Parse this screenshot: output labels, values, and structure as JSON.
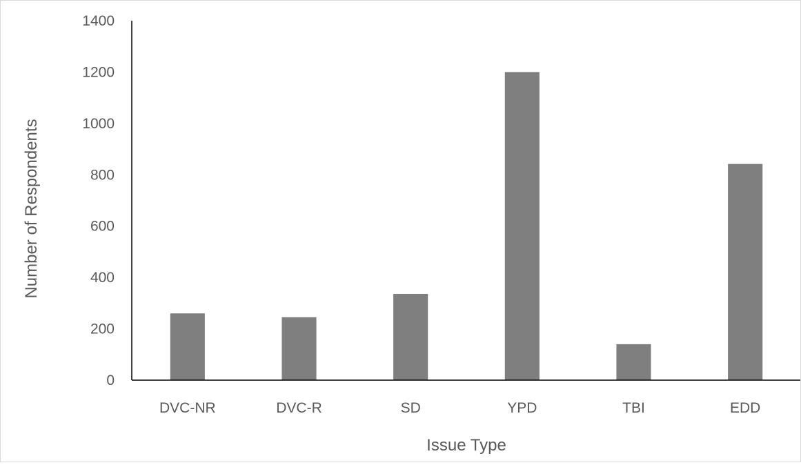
{
  "chart_data": {
    "type": "bar",
    "title": "",
    "xlabel": "Issue Type",
    "ylabel": "Number of Respondents",
    "categories": [
      "DVC-NR",
      "DVC-R",
      "SD",
      "YPD",
      "TBI",
      "EDD"
    ],
    "values": [
      260,
      245,
      336,
      1200,
      140,
      842
    ],
    "ylim": [
      0,
      1400
    ],
    "yticks": [
      0,
      200,
      400,
      600,
      800,
      1000,
      1200,
      1400
    ],
    "ytick_labels": [
      "0",
      "200",
      "400",
      "600",
      "800",
      "1000",
      "1200",
      "1400"
    ],
    "grid": false,
    "legend": "none",
    "bar_color": "#7f7f7f",
    "axis_color": "#000000",
    "text_color": "#595959"
  }
}
